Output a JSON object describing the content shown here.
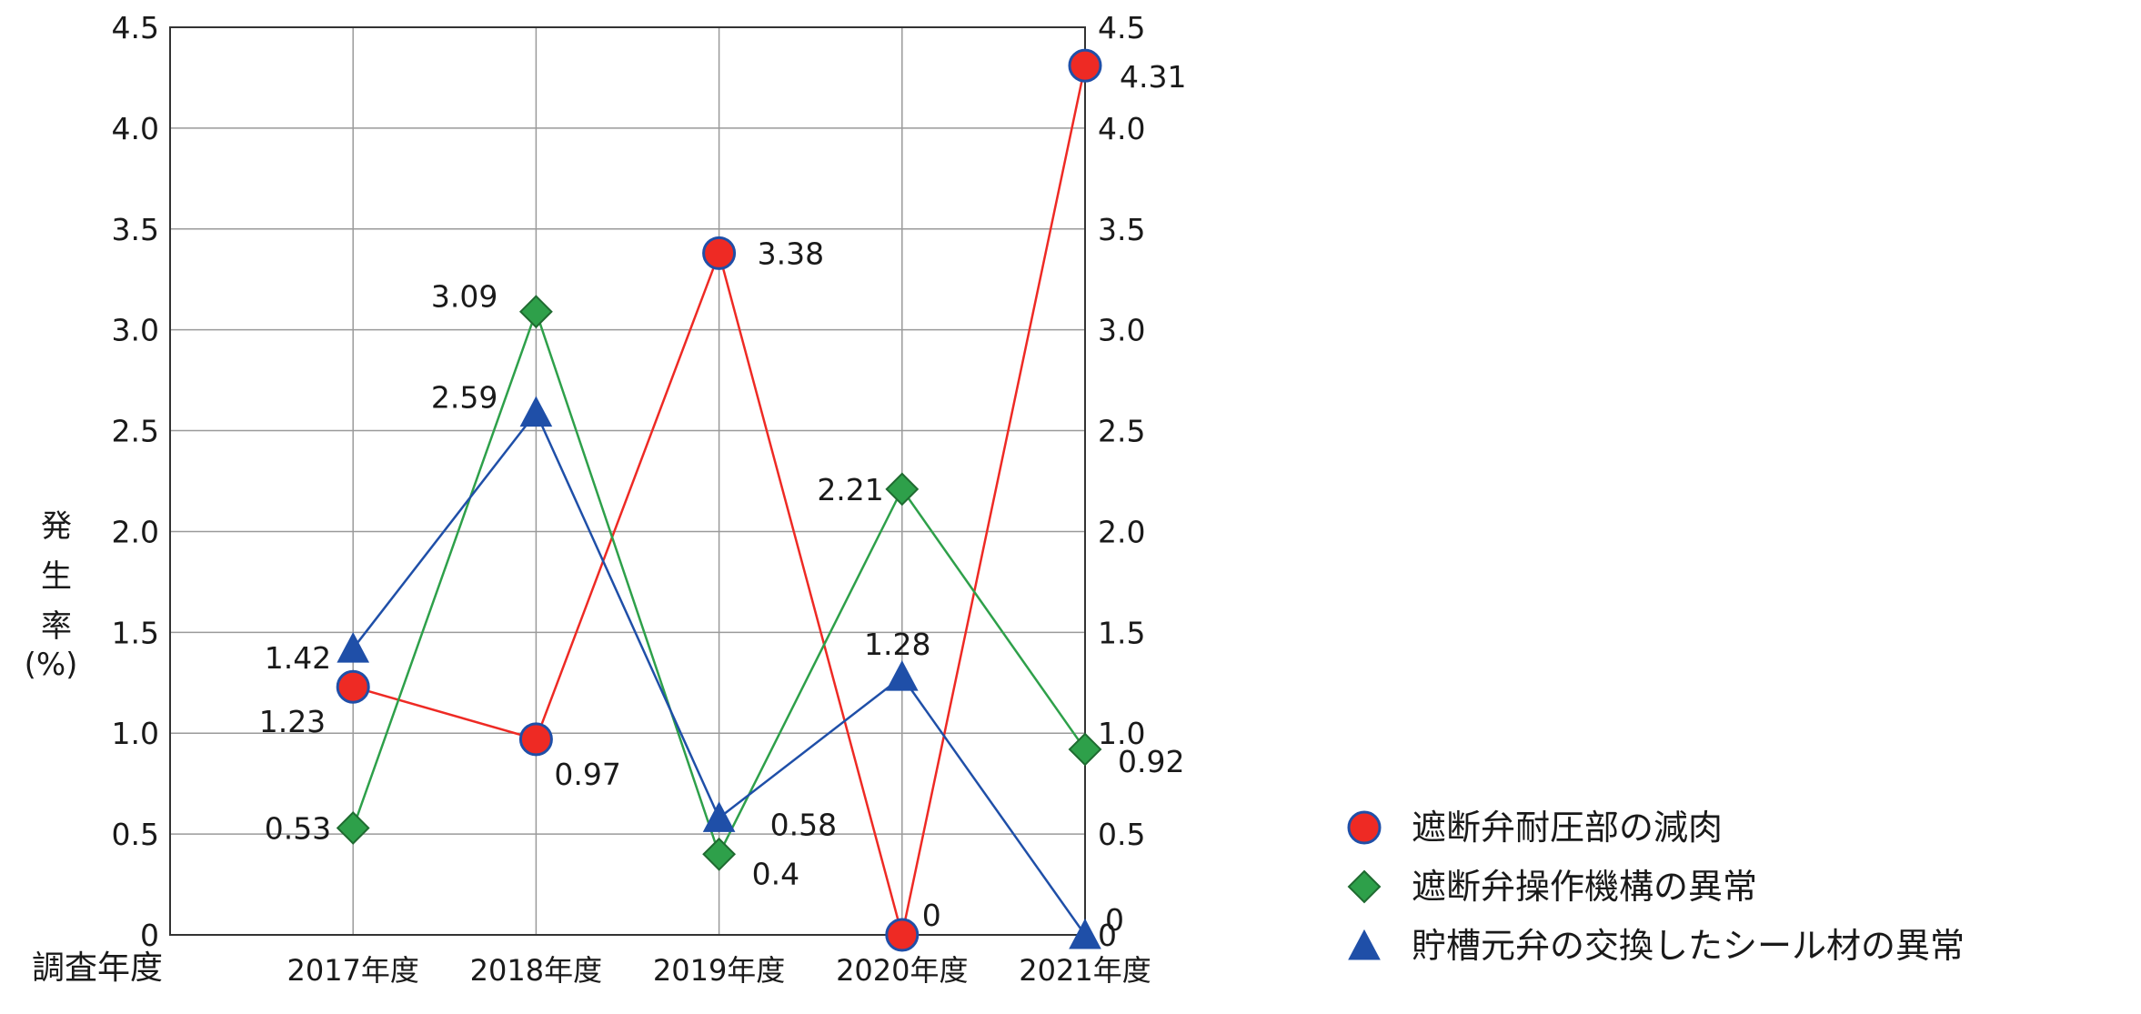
{
  "chart_data": {
    "type": "line",
    "ylabel": "発生率",
    "ylabel_unit": "(%)",
    "xlabel": "調査年度",
    "categories": [
      "2017年度",
      "2018年度",
      "2019年度",
      "2020年度",
      "2021年度"
    ],
    "ylim": [
      0,
      4.5
    ],
    "y_ticks": [
      "0",
      "0.5",
      "1.0",
      "1.5",
      "2.0",
      "2.5",
      "3.0",
      "3.5",
      "4.0",
      "4.5"
    ],
    "grid": true,
    "legend_position": "bottom-right",
    "series": [
      {
        "name": "遮断弁耐圧部の減肉",
        "marker": "circle",
        "color": "#ee2a24",
        "values": [
          1.23,
          0.97,
          3.38,
          0,
          4.31
        ],
        "labels": [
          "1.23",
          "0.97",
          "3.38",
          "0",
          "4.31"
        ]
      },
      {
        "name": "遮断弁操作機構の異常",
        "marker": "diamond",
        "color": "#2ea04a",
        "values": [
          0.53,
          3.09,
          0.4,
          2.21,
          0.92
        ],
        "labels": [
          "0.53",
          "3.09",
          "0.4",
          "2.21",
          "0.92"
        ]
      },
      {
        "name": "貯槽元弁の交換したシール材の異常",
        "marker": "triangle",
        "color": "#1f4fa8",
        "values": [
          1.42,
          2.59,
          0.58,
          1.28,
          0
        ],
        "labels": [
          "1.42",
          "2.59",
          "0.58",
          "1.28",
          "0"
        ]
      }
    ]
  }
}
